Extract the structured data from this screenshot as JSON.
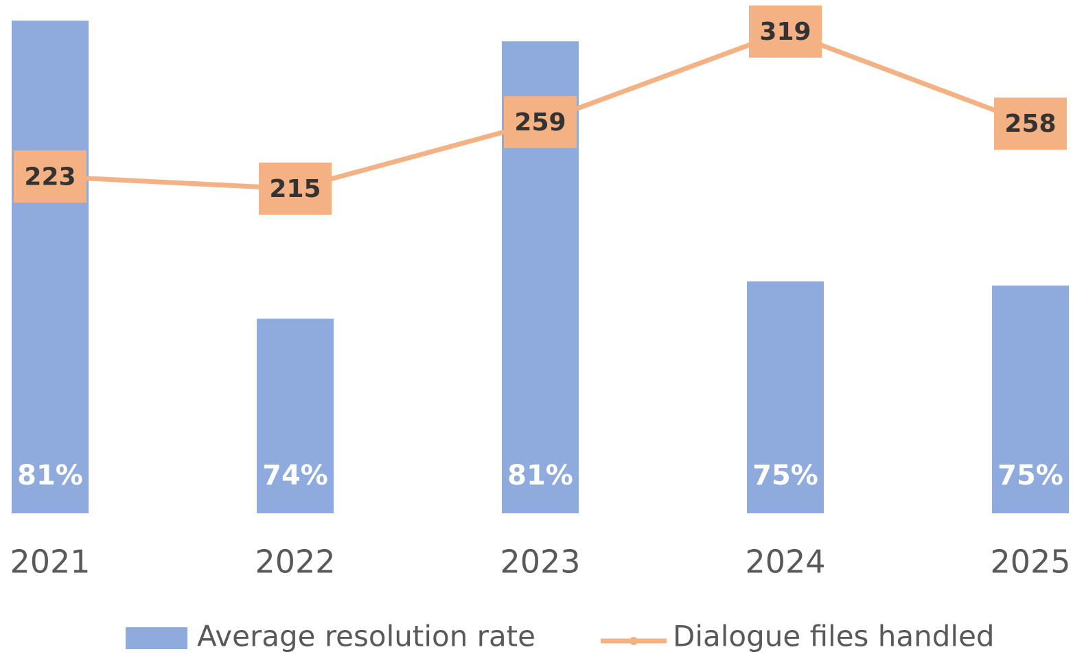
{
  "chart_data": {
    "type": "bar+line",
    "categories": [
      "2021",
      "2022",
      "2023",
      "2024",
      "2025"
    ],
    "series": [
      {
        "name": "Average resolution rate",
        "type": "bar",
        "color": "#8faadc",
        "axis": "y",
        "values": [
          81.4,
          74.2,
          80.9,
          75.1,
          75.0
        ],
        "value_labels": [
          "81%",
          "74%",
          "81%",
          "75%",
          "75%"
        ]
      },
      {
        "name": "Dialogue files handled",
        "type": "line",
        "color": "#f4b183",
        "axis": "y2",
        "values": [
          223,
          215,
          259,
          319,
          258
        ]
      }
    ],
    "ylim": [
      69.5,
      81.5
    ],
    "y2lim": [
      0,
      329
    ],
    "grid": false,
    "legend": "bottom"
  }
}
